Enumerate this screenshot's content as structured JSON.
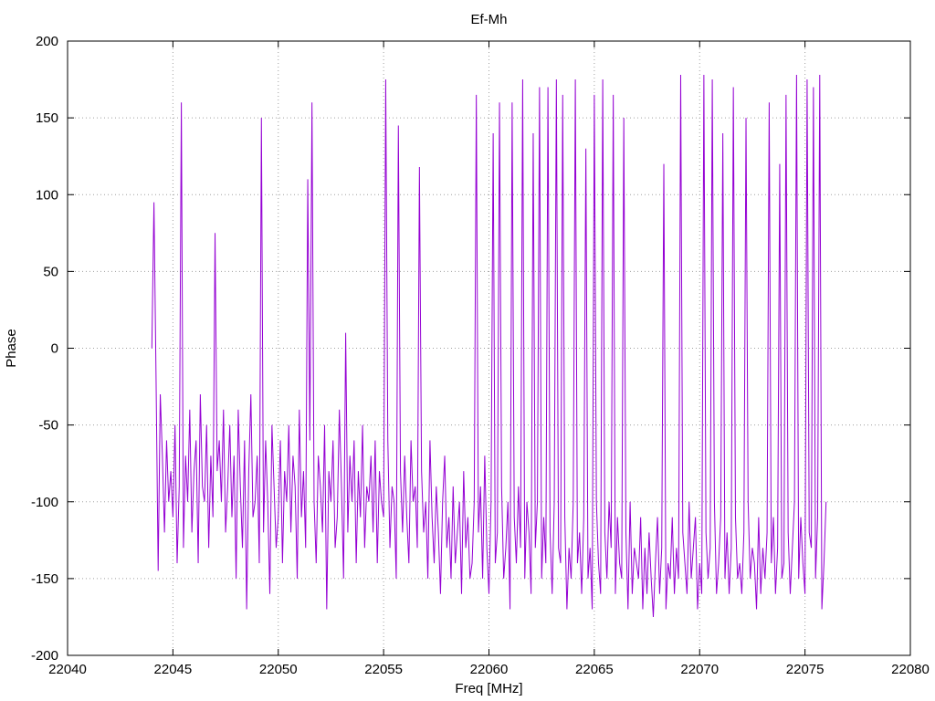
{
  "chart_data": {
    "type": "line",
    "title": "Ef-Mh",
    "xlabel": "Freq [MHz]",
    "ylabel": "Phase",
    "xlim": [
      22040,
      22080
    ],
    "ylim": [
      -200,
      200
    ],
    "xticks": [
      22040,
      22045,
      22050,
      22055,
      22060,
      22065,
      22070,
      22075,
      22080
    ],
    "yticks": [
      -200,
      -150,
      -100,
      -50,
      0,
      50,
      100,
      150,
      200
    ],
    "grid": true,
    "legend": "none",
    "line_color": "#9400d3",
    "series": [
      {
        "x": [
          22044.0,
          22044.1,
          22044.2,
          22044.3,
          22044.4,
          22044.5,
          22044.6,
          22044.7,
          22044.8,
          22044.9,
          22045.0,
          22045.1,
          22045.2,
          22045.3,
          22045.4,
          22045.5,
          22045.6,
          22045.7,
          22045.8,
          22045.9,
          22046.0,
          22046.1,
          22046.2,
          22046.3,
          22046.4,
          22046.5,
          22046.6,
          22046.7,
          22046.8,
          22046.9,
          22047.0,
          22047.1,
          22047.2,
          22047.3,
          22047.4,
          22047.5,
          22047.6,
          22047.7,
          22047.8,
          22047.9,
          22048.0,
          22048.1,
          22048.2,
          22048.3,
          22048.4,
          22048.5,
          22048.6,
          22048.7,
          22048.8,
          22048.9,
          22049.0,
          22049.1,
          22049.2,
          22049.3,
          22049.4,
          22049.5,
          22049.6,
          22049.7,
          22049.8,
          22049.9,
          22050.0,
          22050.1,
          22050.2,
          22050.3,
          22050.4,
          22050.5,
          22050.6,
          22050.7,
          22050.8,
          22050.9,
          22051.0,
          22051.1,
          22051.2,
          22051.3,
          22051.4,
          22051.5,
          22051.6,
          22051.7,
          22051.8,
          22051.9,
          22052.0,
          22052.1,
          22052.2,
          22052.3,
          22052.4,
          22052.5,
          22052.6,
          22052.7,
          22052.8,
          22052.9,
          22053.0,
          22053.1,
          22053.2,
          22053.3,
          22053.4,
          22053.5,
          22053.6,
          22053.7,
          22053.8,
          22053.9,
          22054.0,
          22054.1,
          22054.2,
          22054.3,
          22054.4,
          22054.5,
          22054.6,
          22054.7,
          22054.8,
          22054.9,
          22055.0,
          22055.1,
          22055.2,
          22055.3,
          22055.4,
          22055.5,
          22055.6,
          22055.7,
          22055.8,
          22055.9,
          22056.0,
          22056.1,
          22056.2,
          22056.3,
          22056.4,
          22056.5,
          22056.6,
          22056.7,
          22056.8,
          22056.9,
          22057.0,
          22057.1,
          22057.2,
          22057.3,
          22057.4,
          22057.5,
          22057.6,
          22057.7,
          22057.8,
          22057.9,
          22058.0,
          22058.1,
          22058.2,
          22058.3,
          22058.4,
          22058.5,
          22058.6,
          22058.7,
          22058.8,
          22058.9,
          22059.0,
          22059.1,
          22059.2,
          22059.3,
          22059.4,
          22059.5,
          22059.6,
          22059.7,
          22059.8,
          22059.9,
          22060.0,
          22060.1,
          22060.2,
          22060.3,
          22060.4,
          22060.5,
          22060.6,
          22060.7,
          22060.8,
          22060.9,
          22061.0,
          22061.1,
          22061.2,
          22061.3,
          22061.4,
          22061.5,
          22061.6,
          22061.7,
          22061.8,
          22061.9,
          22062.0,
          22062.1,
          22062.2,
          22062.3,
          22062.4,
          22062.5,
          22062.6,
          22062.7,
          22062.8,
          22062.9,
          22063.0,
          22063.1,
          22063.2,
          22063.3,
          22063.4,
          22063.5,
          22063.6,
          22063.7,
          22063.8,
          22063.9,
          22064.0,
          22064.1,
          22064.2,
          22064.3,
          22064.4,
          22064.5,
          22064.6,
          22064.7,
          22064.8,
          22064.9,
          22065.0,
          22065.1,
          22065.2,
          22065.3,
          22065.4,
          22065.5,
          22065.6,
          22065.7,
          22065.8,
          22065.9,
          22066.0,
          22066.1,
          22066.2,
          22066.3,
          22066.4,
          22066.5,
          22066.6,
          22066.7,
          22066.8,
          22066.9,
          22067.0,
          22067.1,
          22067.2,
          22067.3,
          22067.4,
          22067.5,
          22067.6,
          22067.7,
          22067.8,
          22067.9,
          22068.0,
          22068.1,
          22068.2,
          22068.3,
          22068.4,
          22068.5,
          22068.6,
          22068.7,
          22068.8,
          22068.9,
          22069.0,
          22069.1,
          22069.2,
          22069.3,
          22069.4,
          22069.5,
          22069.6,
          22069.7,
          22069.8,
          22069.9,
          22070.0,
          22070.1,
          22070.2,
          22070.3,
          22070.4,
          22070.5,
          22070.6,
          22070.7,
          22070.8,
          22070.9,
          22071.0,
          22071.1,
          22071.2,
          22071.3,
          22071.4,
          22071.5,
          22071.6,
          22071.7,
          22071.8,
          22071.9,
          22072.0,
          22072.1,
          22072.2,
          22072.3,
          22072.4,
          22072.5,
          22072.6,
          22072.7,
          22072.8,
          22072.9,
          22073.0,
          22073.1,
          22073.2,
          22073.3,
          22073.4,
          22073.5,
          22073.6,
          22073.7,
          22073.8,
          22073.9,
          22074.0,
          22074.1,
          22074.2,
          22074.3,
          22074.4,
          22074.5,
          22074.6,
          22074.7,
          22074.8,
          22074.9,
          22075.0,
          22075.1,
          22075.2,
          22075.3,
          22075.4,
          22075.5,
          22075.6,
          22075.7,
          22075.8,
          22075.9,
          22076.0
        ],
        "y": [
          0,
          95,
          -20,
          -145,
          -30,
          -70,
          -120,
          -60,
          -100,
          -80,
          -110,
          -50,
          -140,
          -90,
          160,
          -130,
          -70,
          -100,
          -40,
          -120,
          -80,
          -60,
          -140,
          -30,
          -90,
          -100,
          -50,
          -130,
          -70,
          -110,
          75,
          -80,
          -60,
          -100,
          -40,
          -120,
          -90,
          -50,
          -110,
          -70,
          -150,
          -40,
          -90,
          -130,
          -60,
          -170,
          -80,
          -30,
          -110,
          -100,
          -70,
          -140,
          150,
          -120,
          -60,
          -100,
          -160,
          -50,
          -90,
          -130,
          -110,
          -60,
          -140,
          -80,
          -100,
          -50,
          -120,
          -70,
          -90,
          -150,
          -40,
          -110,
          -80,
          -130,
          110,
          -60,
          160,
          -100,
          -140,
          -70,
          -90,
          -120,
          -50,
          -170,
          -80,
          -100,
          -60,
          -130,
          -110,
          -40,
          -90,
          -150,
          10,
          -120,
          -70,
          -100,
          -60,
          -140,
          -80,
          -110,
          -50,
          -130,
          -90,
          -100,
          -70,
          -120,
          -60,
          -140,
          -80,
          -100,
          -110,
          175,
          -60,
          -130,
          -90,
          -100,
          -150,
          145,
          -80,
          -120,
          -70,
          -110,
          -140,
          -60,
          -100,
          -90,
          -130,
          118,
          -80,
          -120,
          -100,
          -150,
          -60,
          -110,
          -140,
          -90,
          -120,
          -160,
          -100,
          -70,
          -130,
          -110,
          -150,
          -90,
          -140,
          -120,
          -100,
          -160,
          -80,
          -130,
          -110,
          -150,
          -140,
          -100,
          165,
          -120,
          -90,
          -150,
          -70,
          -130,
          -160,
          -100,
          140,
          -140,
          -120,
          160,
          -90,
          -150,
          -130,
          -100,
          -170,
          160,
          -110,
          -140,
          -90,
          -130,
          175,
          -150,
          -100,
          -120,
          -160,
          140,
          -130,
          -100,
          170,
          -150,
          -110,
          -140,
          170,
          -120,
          -160,
          -100,
          175,
          -130,
          -140,
          165,
          -110,
          -170,
          -130,
          -150,
          -100,
          175,
          -140,
          -120,
          -160,
          -110,
          130,
          -150,
          -130,
          -170,
          165,
          -100,
          -140,
          -160,
          175,
          -120,
          -150,
          -100,
          -130,
          165,
          -160,
          -110,
          -140,
          -150,
          150,
          -120,
          -170,
          -100,
          -160,
          -130,
          -140,
          -150,
          -110,
          -170,
          -130,
          -160,
          -120,
          -150,
          -175,
          -140,
          -110,
          -160,
          -130,
          120,
          -170,
          -140,
          -150,
          -110,
          -160,
          -130,
          -150,
          178,
          -120,
          -140,
          -160,
          -100,
          -150,
          -130,
          -110,
          -170,
          -140,
          -160,
          178,
          -120,
          -150,
          -130,
          175,
          -100,
          -160,
          -140,
          -110,
          140,
          -150,
          -120,
          -160,
          -130,
          170,
          -110,
          -150,
          -140,
          -160,
          -120,
          150,
          -100,
          -150,
          -130,
          -140,
          -170,
          -110,
          -160,
          -130,
          -150,
          -120,
          160,
          -140,
          -110,
          -160,
          -130,
          120,
          -150,
          -140,
          165,
          -120,
          -160,
          -130,
          -100,
          178,
          -150,
          -110,
          -140,
          -160,
          175,
          -120,
          -130,
          170,
          -150,
          -110,
          178,
          -170,
          -140,
          -100
        ]
      }
    ]
  }
}
